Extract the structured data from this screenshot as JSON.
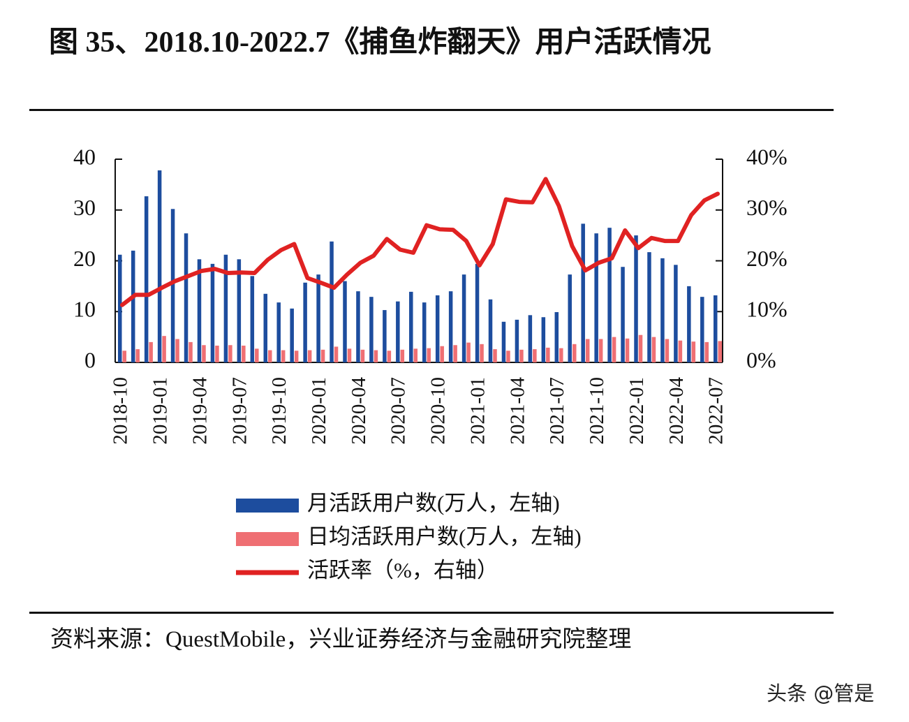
{
  "chart_data": {
    "type": "combo",
    "title": "图 35、2018.10-2022.7《捕鱼炸翻天》用户活跃情况",
    "categories": [
      "2018-10",
      null,
      null,
      "2019-01",
      null,
      null,
      "2019-04",
      null,
      null,
      "2019-07",
      null,
      null,
      "2019-10",
      null,
      null,
      "2020-01",
      null,
      null,
      "2020-04",
      null,
      null,
      "2020-07",
      null,
      null,
      "2020-10",
      null,
      null,
      "2021-01",
      null,
      null,
      "2021-04",
      null,
      null,
      "2021-07",
      null,
      null,
      "2021-10",
      null,
      null,
      "2022-01",
      null,
      null,
      "2022-04",
      null,
      null,
      "2022-07"
    ],
    "series": [
      {
        "name": "月活跃用户数(万人，左轴)",
        "type": "bar",
        "color": "#1d4d9e",
        "values": [
          21.2,
          22,
          32.7,
          37.8,
          30.2,
          25.4,
          20.3,
          19.4,
          21.2,
          20.3,
          17,
          13.5,
          11.8,
          10.6,
          15.7,
          17.3,
          23.8,
          16,
          14,
          12.9,
          10.3,
          12,
          13.9,
          11.8,
          13.2,
          14,
          17.3,
          19.4,
          12.4,
          8,
          8.4,
          9.3,
          8.9,
          9.9,
          17.3,
          27.3,
          25.4,
          26.5,
          18.8,
          25,
          21.7,
          20.5,
          19.2,
          15,
          12.9,
          13.2
        ]
      },
      {
        "name": "日均活跃用户数(万人，左轴)",
        "type": "bar",
        "color": "#ef6f73",
        "values": [
          2.3,
          2.6,
          4,
          5.2,
          4.6,
          4,
          3.4,
          3.3,
          3.4,
          3.3,
          2.7,
          2.4,
          2.4,
          2.3,
          2.4,
          2.5,
          3.1,
          2.7,
          2.5,
          2.4,
          2.3,
          2.5,
          2.7,
          2.8,
          3.2,
          3.4,
          3.9,
          3.6,
          2.6,
          2.3,
          2.5,
          2.6,
          2.9,
          2.8,
          3.6,
          4.6,
          4.6,
          5,
          4.7,
          5.4,
          5,
          4.6,
          4.3,
          4.1,
          4,
          4.2
        ]
      },
      {
        "name": "活跃率（%，右轴）",
        "type": "line",
        "axis": "y2",
        "color": "#e02222",
        "values": [
          11.3,
          13.3,
          13.3,
          14.7,
          16,
          17,
          18,
          18.4,
          17.6,
          17.7,
          17.6,
          20.2,
          22.1,
          23.3,
          16.6,
          15.7,
          14.7,
          17.3,
          19.6,
          21,
          24.3,
          22.2,
          21.6,
          27,
          26.2,
          26.1,
          23.9,
          19.1,
          23.3,
          32.1,
          31.6,
          31.5,
          36.1,
          30.8,
          22.9,
          18.1,
          19.6,
          20.5,
          26,
          22.5,
          24.5,
          23.9,
          23.9,
          29,
          31.9,
          33.2
        ]
      }
    ],
    "ylim": [
      0,
      40
    ],
    "yticks": [
      0,
      10,
      20,
      30,
      40
    ],
    "y2lim": [
      0,
      40
    ],
    "y2ticks": [
      {
        "value": 0,
        "label": "0%"
      },
      {
        "value": 10,
        "label": "10%"
      },
      {
        "value": 20,
        "label": "20%"
      },
      {
        "value": 30,
        "label": "30%"
      },
      {
        "value": 40,
        "label": "40%"
      }
    ],
    "source": "资料来源：QuestMobile，兴业证券经济与金融研究院整理",
    "watermark": "头条 @管是"
  }
}
